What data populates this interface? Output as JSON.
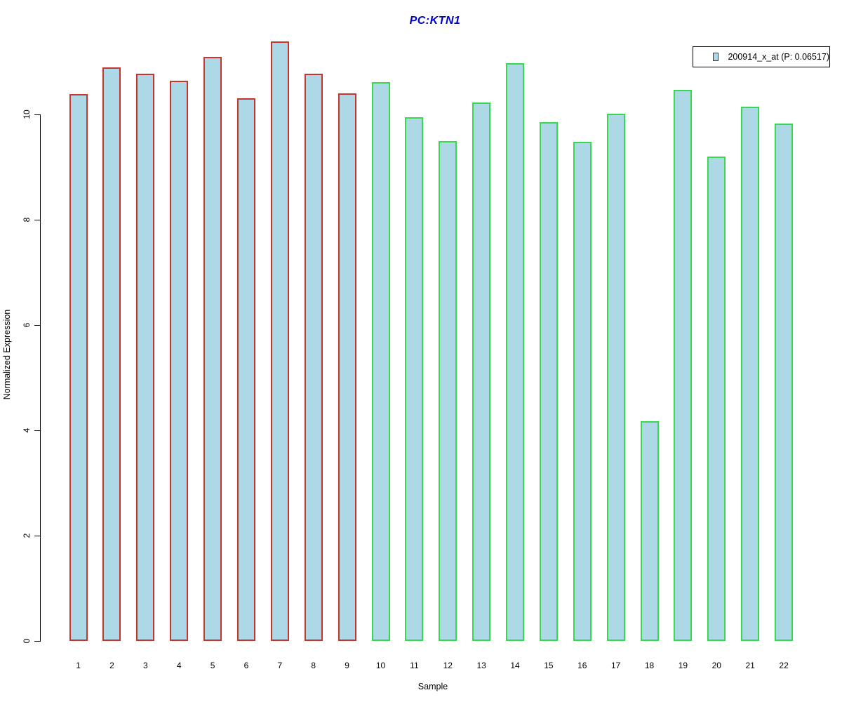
{
  "title": {
    "text": "PC:KTN1",
    "color": "#0000cc"
  },
  "legend": {
    "label": "200914_x_at (P: 0.06517)",
    "swatch_fill": "#add8e6",
    "swatch_border": "#3a3a3a",
    "position": "top-right"
  },
  "chart_data": {
    "type": "bar",
    "title": "PC:KTN1",
    "xlabel": "Sample",
    "ylabel": "Normalized Expression",
    "ylim": [
      0,
      11.5
    ],
    "yticks": [
      0,
      2,
      4,
      6,
      8,
      10
    ],
    "grid": false,
    "legend_entries": [
      "200914_x_at (P: 0.06517)"
    ],
    "legend_position": "top-right",
    "categories": [
      "1",
      "2",
      "3",
      "4",
      "5",
      "6",
      "7",
      "8",
      "9",
      "10",
      "11",
      "12",
      "13",
      "14",
      "15",
      "16",
      "17",
      "18",
      "19",
      "20",
      "21",
      "22"
    ],
    "values": [
      10.39,
      10.89,
      10.77,
      10.64,
      11.09,
      10.31,
      11.39,
      10.77,
      10.4,
      10.61,
      9.95,
      9.49,
      10.23,
      10.97,
      9.85,
      9.48,
      10.01,
      4.18,
      10.47,
      9.2,
      10.15,
      9.83
    ],
    "bar_fill": "#add8e6",
    "series_groups": [
      {
        "name": "samples-1-9",
        "start": 1,
        "end": 9,
        "border_color": "#c9342c"
      },
      {
        "name": "samples-10-22",
        "start": 10,
        "end": 22,
        "border_color": "#38d94e"
      }
    ]
  }
}
